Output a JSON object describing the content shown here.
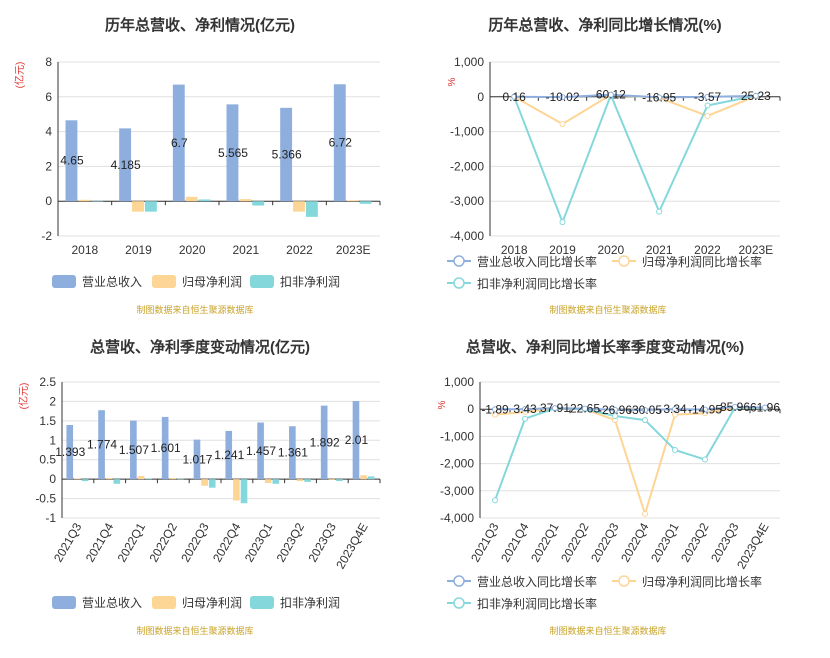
{
  "colors": {
    "revenue": "#8eaedd",
    "net": "#fdd595",
    "deducted": "#84d8dc",
    "grid": "#e0e0e0",
    "axis": "#333333",
    "title": "#333333",
    "unit": "#e0332f",
    "source": "#c9a227"
  },
  "source_note": "制图数据来自恒生聚源数据库",
  "chart_data": [
    {
      "type": "bar",
      "title": "历年总营收、净利情况(亿元)",
      "unit": "亿元",
      "categories": [
        "2018",
        "2019",
        "2020",
        "2021",
        "2022",
        "2023E"
      ],
      "ylim": [
        -2,
        8
      ],
      "yticks": [
        "-2",
        "0",
        "2",
        "4",
        "6",
        "8"
      ],
      "series": [
        {
          "name": "营业总收入",
          "values": [
            4.65,
            4.185,
            6.7,
            5.565,
            5.366,
            6.72
          ],
          "labels": [
            "4.65",
            "4.185",
            "6.7",
            "5.565",
            "5.366",
            "6.72"
          ]
        },
        {
          "name": "归母净利润",
          "values": [
            0.08,
            -0.6,
            0.25,
            0.12,
            -0.6,
            0.05
          ]
        },
        {
          "name": "扣非净利润",
          "values": [
            0.02,
            -0.6,
            0.1,
            -0.25,
            -0.9,
            -0.15
          ]
        }
      ]
    },
    {
      "type": "line",
      "title": "历年总营收、净利同比增长情况(%)",
      "unit": "%",
      "categories": [
        "2018",
        "2019",
        "2020",
        "2021",
        "2022",
        "2023E"
      ],
      "ylim": [
        -4000,
        1000
      ],
      "yticks": [
        "-4,000",
        "-3,000",
        "-2,000",
        "-1,000",
        "0",
        "1,000"
      ],
      "series": [
        {
          "name": "营业总收入同比增长率",
          "values": [
            0.16,
            -10.02,
            60.12,
            -16.95,
            -3.57,
            25.23
          ],
          "labels": [
            "0.16",
            "-10.02",
            "60.12",
            "-16.95",
            "-3.57",
            "25.23"
          ]
        },
        {
          "name": "归母净利润同比增长率",
          "values": [
            0,
            -780,
            60,
            -30,
            -550,
            20
          ]
        },
        {
          "name": "扣非净利润同比增长率",
          "values": [
            0,
            -3600,
            50,
            -3300,
            -250,
            30
          ]
        }
      ]
    },
    {
      "type": "bar",
      "title": "总营收、净利季度变动情况(亿元)",
      "unit": "亿元",
      "categories": [
        "2021Q3",
        "2021Q4",
        "2022Q1",
        "2022Q2",
        "2022Q3",
        "2022Q4",
        "2023Q1",
        "2023Q2",
        "2023Q3",
        "2023Q4E"
      ],
      "ylim": [
        -1,
        2.5
      ],
      "yticks": [
        "-1",
        "-0.5",
        "0",
        "0.5",
        "1",
        "1.5",
        "2",
        "2.5"
      ],
      "series": [
        {
          "name": "营业总收入",
          "values": [
            1.393,
            1.774,
            1.507,
            1.601,
            1.017,
            1.241,
            1.457,
            1.361,
            1.892,
            2.01
          ],
          "labels": [
            "1.393",
            "1.774",
            "1.507",
            "1.601",
            "1.017",
            "1.241",
            "1.457",
            "1.361",
            "1.892",
            "2.01"
          ]
        },
        {
          "name": "归母净利润",
          "values": [
            0.02,
            0.03,
            0.08,
            0.03,
            -0.17,
            -0.55,
            -0.1,
            -0.05,
            -0.02,
            0.1
          ]
        },
        {
          "name": "扣非净利润",
          "values": [
            -0.05,
            -0.12,
            0.02,
            0.01,
            -0.22,
            -0.62,
            -0.12,
            -0.07,
            -0.05,
            0.07
          ]
        }
      ]
    },
    {
      "type": "line",
      "title": "总营收、净利同比增长率季度变动情况(%)",
      "unit": "%",
      "categories": [
        "2021Q3",
        "2021Q4",
        "2022Q1",
        "2022Q2",
        "2022Q3",
        "2022Q4",
        "2023Q1",
        "2023Q2",
        "2023Q3",
        "2023Q4E"
      ],
      "ylim": [
        -4000,
        1000
      ],
      "yticks": [
        "-4,000",
        "-3,000",
        "-2,000",
        "-1,000",
        "0",
        "1,000"
      ],
      "series": [
        {
          "name": "营业总收入同比增长率",
          "values": [
            -1.89,
            3.43,
            37.91,
            22.65,
            -26.96,
            -30.05,
            3.34,
            -14.95,
            85.96,
            61.96
          ],
          "labels": [
            "-1.89",
            "3.43",
            "37.91",
            "22.65",
            "-26.96",
            "-30.05",
            "3.34",
            "-14.95",
            "85.96",
            "61.96"
          ]
        },
        {
          "name": "归母净利润同比增长率",
          "values": [
            -200,
            -100,
            30,
            0,
            -400,
            -3850,
            -200,
            -150,
            50,
            40
          ]
        },
        {
          "name": "扣非净利润同比增长率",
          "values": [
            -3350,
            -350,
            30,
            0,
            -250,
            -400,
            -1500,
            -1850,
            60,
            50
          ]
        }
      ]
    }
  ]
}
